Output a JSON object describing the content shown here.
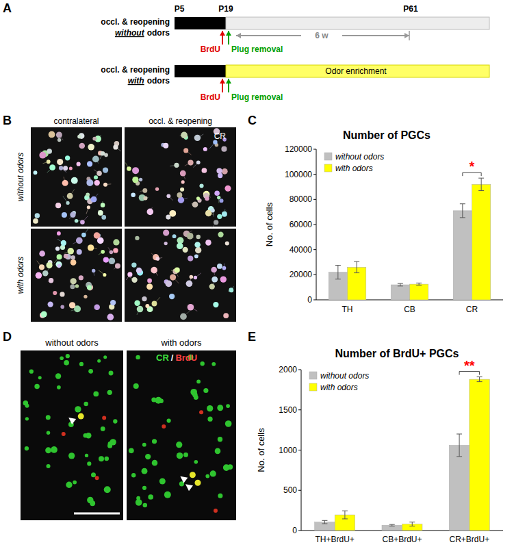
{
  "panel_labels": [
    "A",
    "B",
    "C",
    "D",
    "E"
  ],
  "timeline": {
    "ages": [
      "P5",
      "P19",
      "P61"
    ],
    "rows": [
      {
        "label": "occl. & reopening",
        "condition": "without",
        "suffix": "odors",
        "period_label": "6 w"
      },
      {
        "label": "occl. & reopening",
        "condition": "with",
        "suffix": "odors",
        "period_label": "Odor enrichment"
      }
    ],
    "events": [
      "BrdU",
      "Plug removal"
    ]
  },
  "micrographs_b": {
    "columns": [
      "contralateral",
      "occl. & reopening"
    ],
    "rows": [
      "without odors",
      "with odors"
    ],
    "stain": "CR"
  },
  "micrographs_d": {
    "columns": [
      "without odors",
      "with odors"
    ],
    "stains": [
      "CR",
      "BrdU"
    ],
    "separator": "/"
  },
  "chart_data": [
    {
      "type": "bar",
      "title": "Number of  PGCs",
      "categories": [
        "TH",
        "CB",
        "CR"
      ],
      "series": [
        {
          "name": "without odors",
          "color": "#c0c0c0",
          "values": [
            22000,
            12000,
            71000
          ],
          "errors": [
            5500,
            1000,
            5500
          ]
        },
        {
          "name": "with odors",
          "color": "#ffff00",
          "values": [
            26000,
            12500,
            92000
          ],
          "errors": [
            4500,
            900,
            5000
          ]
        }
      ],
      "y_label": "No. of cells",
      "ylim": [
        0,
        120000
      ],
      "yticks": [
        0,
        20000,
        40000,
        60000,
        80000,
        100000,
        120000
      ],
      "legend": "top-left",
      "annotations": [
        {
          "text": "*",
          "category": "CR",
          "color": "#ff0000"
        }
      ]
    },
    {
      "type": "bar",
      "title": "Number of BrdU+ PGCs",
      "categories": [
        "TH+BrdU+",
        "CB+BrdU+",
        "CR+BrdU+"
      ],
      "series": [
        {
          "name": "without odors",
          "color": "#c0c0c0",
          "values": [
            105,
            65,
            1060
          ],
          "errors": [
            20,
            10,
            140
          ]
        },
        {
          "name": "with odors",
          "color": "#ffff00",
          "values": [
            195,
            80,
            1880
          ],
          "errors": [
            50,
            25,
            30
          ]
        }
      ],
      "y_label": "No. of cells",
      "ylim": [
        0,
        2000
      ],
      "yticks": [
        0,
        500,
        1000,
        1500,
        2000
      ],
      "legend": "top-left",
      "annotations": [
        {
          "text": "**",
          "category": "CR+BrdU+",
          "color": "#ff0000"
        }
      ]
    }
  ]
}
